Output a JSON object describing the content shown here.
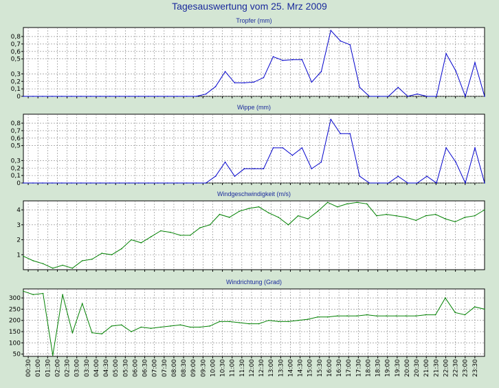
{
  "page": {
    "title": "Tagesauswertung vom 25. Mrz 2009",
    "colors": {
      "background": "#d4e6d4",
      "plot_bg": "#ffffff",
      "title": "#1a2a9c",
      "rain": "#0000cc",
      "wind": "#008000",
      "grid": "#808080"
    }
  },
  "x_labels": [
    "00:30",
    "01:00",
    "01:30",
    "02:00",
    "02:30",
    "03:00",
    "03:30",
    "04:00",
    "04:30",
    "05:00",
    "05:30",
    "06:00",
    "06:30",
    "07:00",
    "07:30",
    "08:00",
    "08:30",
    "09:00",
    "09:30",
    "10:00",
    "10:30",
    "11:00",
    "11:30",
    "12:00",
    "12:30",
    "13:00",
    "13:30",
    "14:00",
    "14:30",
    "15:00",
    "15:30",
    "16:00",
    "16:30",
    "17:00",
    "17:30",
    "18:00",
    "18:30",
    "19:00",
    "19:30",
    "20:00",
    "20:30",
    "21:00",
    "21:30",
    "22:00",
    "22:30",
    "23:00",
    "23:30"
  ],
  "chart_data": [
    {
      "type": "line",
      "title": "Tropfer (mm)",
      "color": "#0000cc",
      "y_ticks": [
        "0",
        "0,1",
        "0,2",
        "0,3",
        "0,5",
        "0,6",
        "0,7",
        "0,8"
      ],
      "ylim": [
        0,
        0.92
      ],
      "x_start": "00:00",
      "x_step_minutes": 30,
      "values": [
        0,
        0,
        0,
        0,
        0,
        0,
        0,
        0,
        0,
        0,
        0,
        0,
        0,
        0,
        0,
        0,
        0,
        0,
        0,
        0.03,
        0.13,
        0.33,
        0.18,
        0.18,
        0.19,
        0.25,
        0.53,
        0.48,
        0.49,
        0.49,
        0.19,
        0.33,
        0.88,
        0.74,
        0.69,
        0.12,
        0,
        0,
        0,
        0.12,
        0,
        0.03,
        0,
        0,
        0.57,
        0.34,
        0,
        0.45,
        0
      ]
    },
    {
      "type": "line",
      "title": "Wippe (mm)",
      "color": "#0000cc",
      "y_ticks": [
        "0",
        "0,1",
        "0,2",
        "0,3",
        "0,5",
        "0,6",
        "0,7",
        "0,8"
      ],
      "ylim": [
        0,
        0.92
      ],
      "x_start": "00:00",
      "x_step_minutes": 30,
      "values": [
        0,
        0,
        0,
        0,
        0,
        0,
        0,
        0,
        0,
        0,
        0,
        0,
        0,
        0,
        0,
        0,
        0,
        0,
        0,
        0,
        0.09,
        0.28,
        0.09,
        0.19,
        0.19,
        0.19,
        0.47,
        0.47,
        0.37,
        0.47,
        0.19,
        0.28,
        0.85,
        0.66,
        0.66,
        0.09,
        0,
        0,
        0,
        0.09,
        0,
        0,
        0.09,
        0,
        0.47,
        0.28,
        0,
        0.47,
        0
      ]
    },
    {
      "type": "line",
      "title": "Windgeschwindigkeit (m/s)",
      "color": "#008000",
      "y_ticks": [
        "1",
        "2",
        "3",
        "4"
      ],
      "ylim": [
        0,
        4.6
      ],
      "x_start": "00:00",
      "x_step_minutes": 30,
      "values": [
        0.9,
        0.6,
        0.4,
        0.1,
        0.3,
        0.1,
        0.6,
        0.7,
        1.1,
        1.0,
        1.4,
        2.0,
        1.8,
        2.2,
        2.6,
        2.5,
        2.3,
        2.3,
        2.8,
        3.0,
        3.7,
        3.5,
        3.9,
        4.1,
        4.2,
        3.8,
        3.5,
        3.0,
        3.6,
        3.4,
        3.9,
        4.5,
        4.2,
        4.4,
        4.5,
        4.4,
        3.6,
        3.7,
        3.6,
        3.5,
        3.3,
        3.6,
        3.7,
        3.4,
        3.2,
        3.5,
        3.6,
        4.0
      ]
    },
    {
      "type": "line",
      "title": "Windrichtung (Grad)",
      "color": "#008000",
      "y_ticks": [
        "50",
        "100",
        "150",
        "200",
        "250",
        "300"
      ],
      "ylim": [
        40,
        340
      ],
      "x_start": "00:00",
      "x_step_minutes": 30,
      "values": [
        330,
        315,
        320,
        45,
        315,
        145,
        275,
        145,
        140,
        175,
        180,
        150,
        170,
        165,
        170,
        175,
        180,
        170,
        170,
        175,
        195,
        195,
        190,
        185,
        185,
        200,
        195,
        195,
        200,
        205,
        215,
        215,
        220,
        220,
        220,
        225,
        220,
        220,
        220,
        220,
        220,
        225,
        225,
        300,
        235,
        225,
        260,
        250
      ]
    }
  ]
}
